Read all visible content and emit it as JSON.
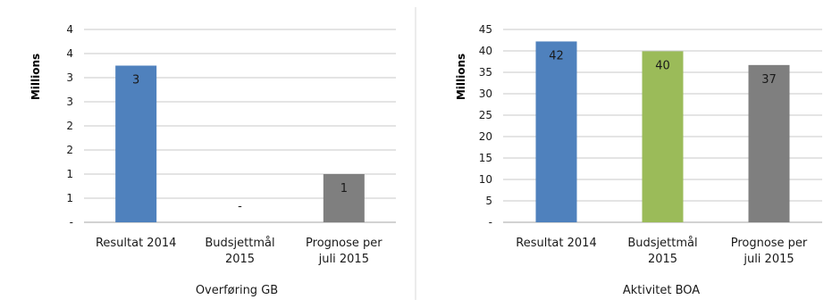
{
  "chart_data": [
    {
      "type": "bar",
      "title": "Overføring GB",
      "ylabel": "Millions",
      "categories": [
        [
          "Resultat 2014"
        ],
        [
          "Budsjettmål",
          "2015"
        ],
        [
          "Prognose per",
          "juli 2015"
        ]
      ],
      "values": [
        3.25,
        0,
        1.0
      ],
      "data_labels": [
        "3",
        "-",
        "1"
      ],
      "colors": [
        "#4f81bd",
        "#4f81bd",
        "#7f7f7f"
      ],
      "ylim": [
        0,
        4
      ],
      "ytick_values": [
        0,
        0.5,
        1,
        1.5,
        2,
        2.5,
        3,
        3.5,
        4
      ],
      "ytick_labels": [
        "-",
        "1",
        "1",
        "2",
        "2",
        "3",
        "3",
        "4",
        "4"
      ],
      "grid": true
    },
    {
      "type": "bar",
      "title": "Aktivitet BOA",
      "ylabel": "Millions",
      "categories": [
        [
          "Resultat 2014"
        ],
        [
          "Budsjettmål",
          "2015"
        ],
        [
          "Prognose per",
          "juli 2015"
        ]
      ],
      "values": [
        42.2,
        39.9,
        36.7
      ],
      "data_labels": [
        "42",
        "40",
        "37"
      ],
      "colors": [
        "#4f81bd",
        "#9bbb59",
        "#7f7f7f"
      ],
      "ylim": [
        0,
        45
      ],
      "ytick_values": [
        0,
        5,
        10,
        15,
        20,
        25,
        30,
        35,
        40,
        45
      ],
      "ytick_labels": [
        "-",
        "5",
        "10",
        "15",
        "20",
        "25",
        "30",
        "35",
        "40",
        "45"
      ],
      "grid": true
    }
  ]
}
